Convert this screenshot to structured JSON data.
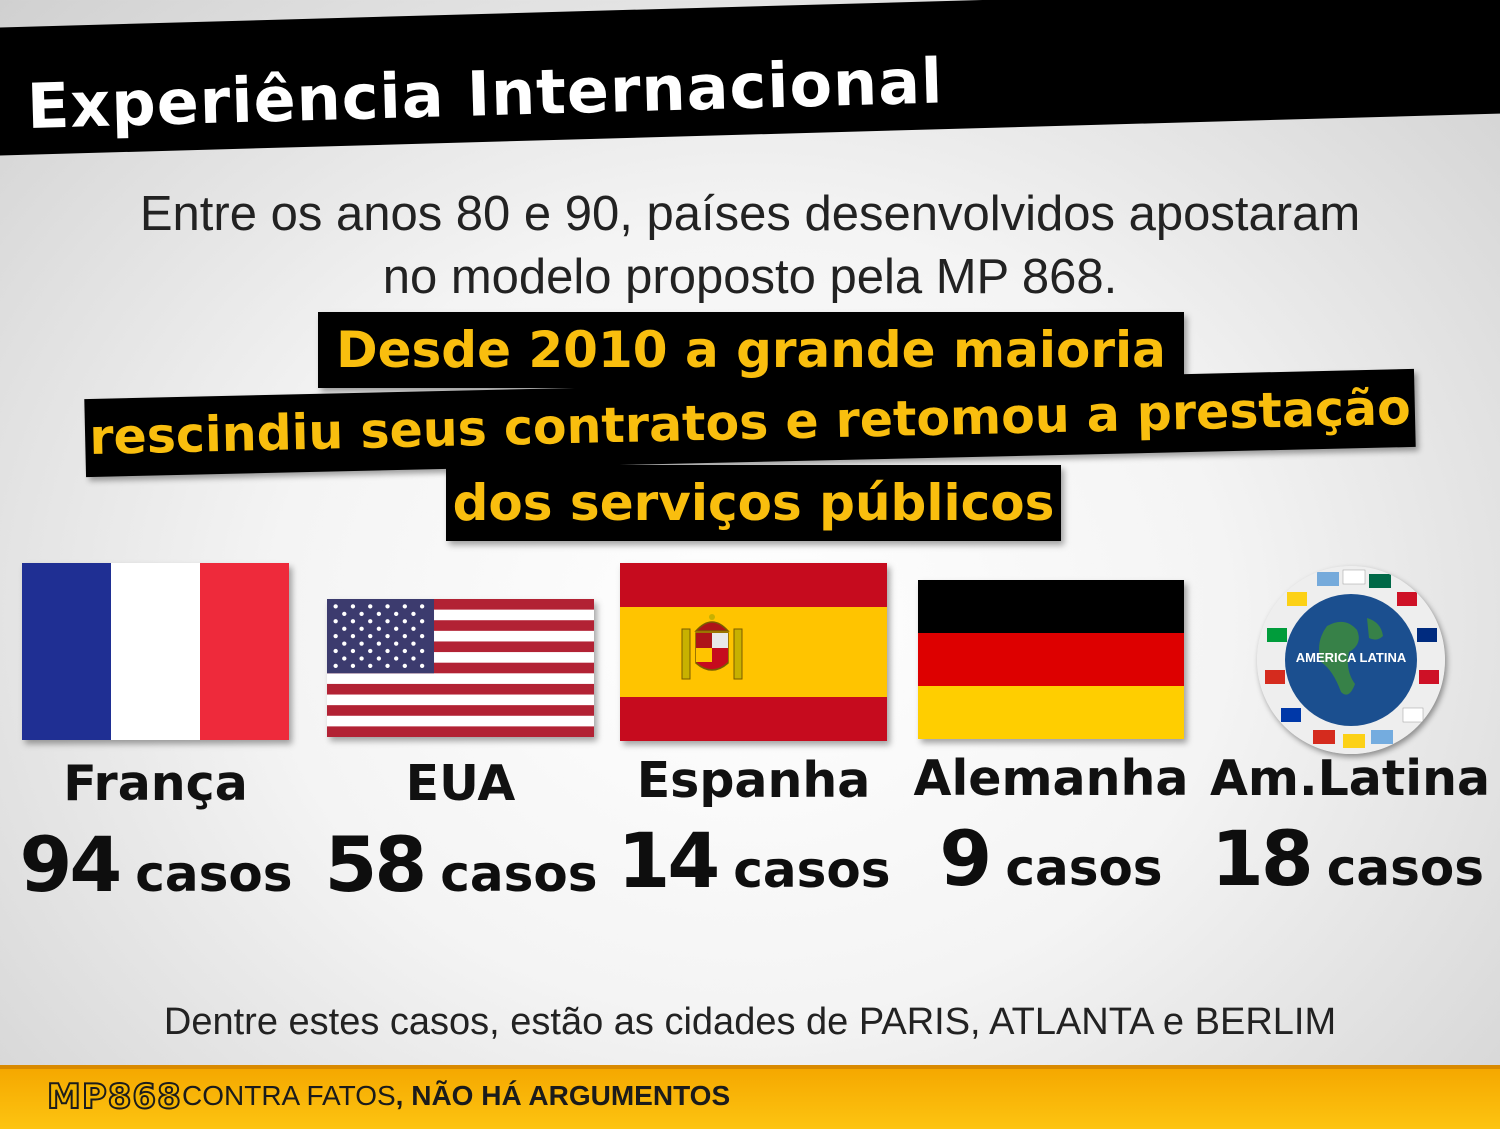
{
  "header": {
    "title": "Experiência Internacional"
  },
  "intro": {
    "line1": "Entre os anos 80 e 90, países desenvolvidos apostaram",
    "line2": "no modelo proposto pela MP 868."
  },
  "highlight": {
    "line1": "Desde 2010 a grande maioria",
    "line2": "rescindiu seus contratos e retomou a prestação",
    "line3": "dos serviços públicos"
  },
  "countries": [
    {
      "name": "França",
      "count": "94",
      "unit": "casos",
      "flag": "france-flag"
    },
    {
      "name": "EUA",
      "count": "58",
      "unit": "casos",
      "flag": "usa-flag"
    },
    {
      "name": "Espanha",
      "count": "14",
      "unit": "casos",
      "flag": "spain-flag"
    },
    {
      "name": "Alemanha",
      "count": "9",
      "unit": "casos",
      "flag": "germany-flag"
    },
    {
      "name": "Am.Latina",
      "count": "18",
      "unit": "casos",
      "flag": "latin-america-globe",
      "badge_text": "AMERICA LATINA"
    }
  ],
  "footnote": {
    "prefix": "Dentre estes casos, estão as cidades de ",
    "cities": "PARIS, ATLANTA e BERLIM"
  },
  "footer": {
    "logo": "MP868",
    "tagline_light": "CONTRA FATOS",
    "tagline_bold": ", NÃO HÁ ARGUMENTOS"
  },
  "colors": {
    "accent": "#f9be0e",
    "band": "#000000",
    "footer": "#fdc411"
  }
}
